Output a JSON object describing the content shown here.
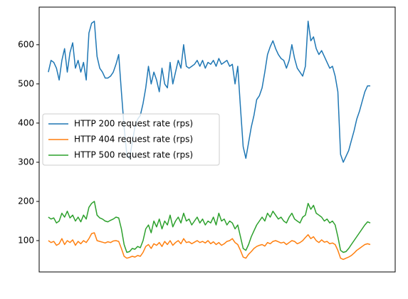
{
  "chart_data": {
    "type": "line",
    "xlim": [
      -3.4,
      128.2
    ],
    "ylim": [
      20,
      696
    ],
    "yticks": [
      100,
      200,
      300,
      400,
      500,
      600
    ],
    "legend": "center left",
    "series": [
      {
        "name": "HTTP 200 request rate (rps)",
        "color": "#1f77b4",
        "values": [
          530,
          560,
          555,
          540,
          510,
          560,
          590,
          530,
          580,
          605,
          540,
          560,
          530,
          555,
          510,
          630,
          655,
          660,
          570,
          540,
          530,
          515,
          515,
          520,
          530,
          550,
          575,
          480,
          390,
          320,
          310,
          350,
          390,
          410,
          420,
          450,
          490,
          545,
          500,
          530,
          510,
          480,
          540,
          500,
          490,
          555,
          500,
          530,
          560,
          540,
          600,
          545,
          540,
          545,
          550,
          560,
          545,
          560,
          540,
          555,
          550,
          560,
          545,
          565,
          550,
          555,
          560,
          545,
          550,
          500,
          545,
          440,
          340,
          310,
          350,
          390,
          420,
          460,
          470,
          490,
          530,
          575,
          595,
          610,
          590,
          575,
          565,
          560,
          540,
          560,
          600,
          565,
          540,
          530,
          520,
          545,
          660,
          610,
          620,
          590,
          575,
          585,
          570,
          555,
          540,
          545,
          520,
          480,
          320,
          300,
          315,
          330,
          355,
          380,
          410,
          430,
          455,
          480,
          495,
          495
        ]
      },
      {
        "name": "HTTP 404 request rate (rps)",
        "color": "#ff7f0e",
        "values": [
          100,
          95,
          98,
          88,
          92,
          105,
          90,
          100,
          95,
          102,
          88,
          98,
          92,
          100,
          95,
          105,
          118,
          120,
          100,
          98,
          96,
          94,
          97,
          95,
          99,
          100,
          98,
          80,
          60,
          55,
          57,
          60,
          58,
          62,
          60,
          70,
          85,
          90,
          80,
          92,
          88,
          95,
          85,
          98,
          90,
          100,
          88,
          95,
          100,
          92,
          105,
          95,
          97,
          92,
          96,
          100,
          95,
          98,
          94,
          100,
          92,
          97,
          90,
          95,
          88,
          92,
          98,
          100,
          105,
          95,
          90,
          75,
          58,
          55,
          65,
          72,
          80,
          85,
          88,
          90,
          86,
          95,
          92,
          98,
          100,
          97,
          94,
          96,
          90,
          95,
          100,
          98,
          92,
          95,
          100,
          108,
          115,
          105,
          110,
          100,
          95,
          102,
          96,
          98,
          92,
          94,
          90,
          75,
          55,
          52,
          55,
          58,
          62,
          68,
          75,
          80,
          85,
          90,
          92,
          90
        ]
      },
      {
        "name": "HTTP 500 request rate (rps)",
        "color": "#2ca02c",
        "values": [
          160,
          155,
          158,
          145,
          150,
          170,
          160,
          175,
          158,
          165,
          150,
          160,
          148,
          165,
          155,
          185,
          195,
          200,
          165,
          158,
          155,
          150,
          148,
          152,
          155,
          160,
          158,
          130,
          90,
          70,
          72,
          80,
          78,
          85,
          82,
          100,
          130,
          140,
          120,
          150,
          135,
          155,
          130,
          150,
          140,
          165,
          135,
          150,
          160,
          145,
          170,
          150,
          155,
          140,
          150,
          160,
          145,
          155,
          140,
          150,
          145,
          160,
          140,
          170,
          150,
          155,
          140,
          150,
          145,
          130,
          140,
          110,
          80,
          75,
          90,
          110,
          125,
          140,
          150,
          160,
          150,
          170,
          160,
          175,
          165,
          155,
          160,
          150,
          145,
          160,
          170,
          155,
          150,
          145,
          160,
          165,
          195,
          180,
          190,
          170,
          165,
          160,
          150,
          155,
          145,
          150,
          140,
          110,
          75,
          70,
          72,
          80,
          90,
          100,
          110,
          120,
          130,
          140,
          148,
          145
        ]
      }
    ]
  }
}
